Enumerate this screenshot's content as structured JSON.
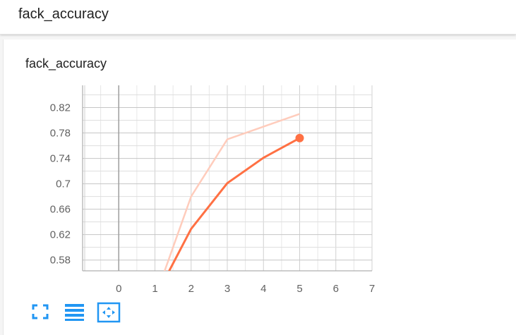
{
  "header": {
    "title": "fack_accuracy"
  },
  "card": {
    "title": "fack_accuracy"
  },
  "toolbar": {
    "buttons": [
      {
        "icon": "fullscreen-icon"
      },
      {
        "icon": "menu-lines-icon"
      },
      {
        "icon": "fit-domain-icon"
      }
    ],
    "accent": "#2196f3"
  },
  "chart_data": {
    "type": "line",
    "title": "",
    "xlabel": "",
    "ylabel": "",
    "xlim": [
      -1,
      7
    ],
    "ylim": [
      0.563,
      0.855
    ],
    "xticks": [
      "0",
      "1",
      "2",
      "3",
      "4",
      "5",
      "6",
      "7"
    ],
    "yticks": [
      "0.58",
      "0.62",
      "0.66",
      "0.7",
      "0.74",
      "0.78",
      "0.82"
    ],
    "series": [
      {
        "name": "",
        "kind": "raw",
        "color": "#ffccbc",
        "x": [
          1,
          2,
          3,
          4,
          5
        ],
        "y": [
          0.52,
          0.68,
          0.77,
          0.79,
          0.81
        ]
      },
      {
        "name": "",
        "kind": "smoothed",
        "color": "#ff7043",
        "x": [
          1,
          2,
          3,
          4,
          5
        ],
        "y": [
          0.52,
          0.629,
          0.701,
          0.741,
          0.772
        ]
      }
    ],
    "highlight_point": {
      "x": 5,
      "y": 0.772
    },
    "grid": true
  }
}
